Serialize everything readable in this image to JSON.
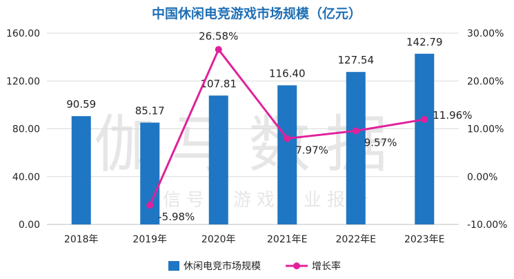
{
  "chart_data": {
    "type": "bar",
    "title": "中国休闲电竞游戏市场规模（亿元）",
    "categories": [
      "2018年",
      "2019年",
      "2020年",
      "2021年E",
      "2022年E",
      "2023年E"
    ],
    "series": [
      {
        "name": "休闲电竞市场规模",
        "type": "bar",
        "axis": "left",
        "values": [
          90.59,
          85.17,
          107.81,
          116.4,
          127.54,
          142.79
        ],
        "labels": [
          "90.59",
          "85.17",
          "107.81",
          "116.40",
          "127.54",
          "142.79"
        ],
        "color": "#1f76c2"
      },
      {
        "name": "增长率",
        "type": "line",
        "axis": "right",
        "values": [
          null,
          -5.98,
          26.58,
          7.97,
          9.57,
          11.96
        ],
        "labels": [
          "",
          "-5.98%",
          "26.58%",
          "7.97%",
          "9.57%",
          "11.96%"
        ],
        "color": "#e0219b"
      }
    ],
    "y_left": {
      "ylim": [
        0,
        160
      ],
      "ticks": [
        "0.00",
        "40.00",
        "80.00",
        "120.00",
        "160.00"
      ]
    },
    "y_right": {
      "ylim": [
        -10,
        30
      ],
      "ticks": [
        "-10.00%",
        "0.00%",
        "10.00%",
        "20.00%",
        "30.00%"
      ]
    },
    "grid": true,
    "legend_position": "bottom"
  },
  "watermark": {
    "main": "伽马数据",
    "sub": "微信号：游戏产业报告"
  }
}
